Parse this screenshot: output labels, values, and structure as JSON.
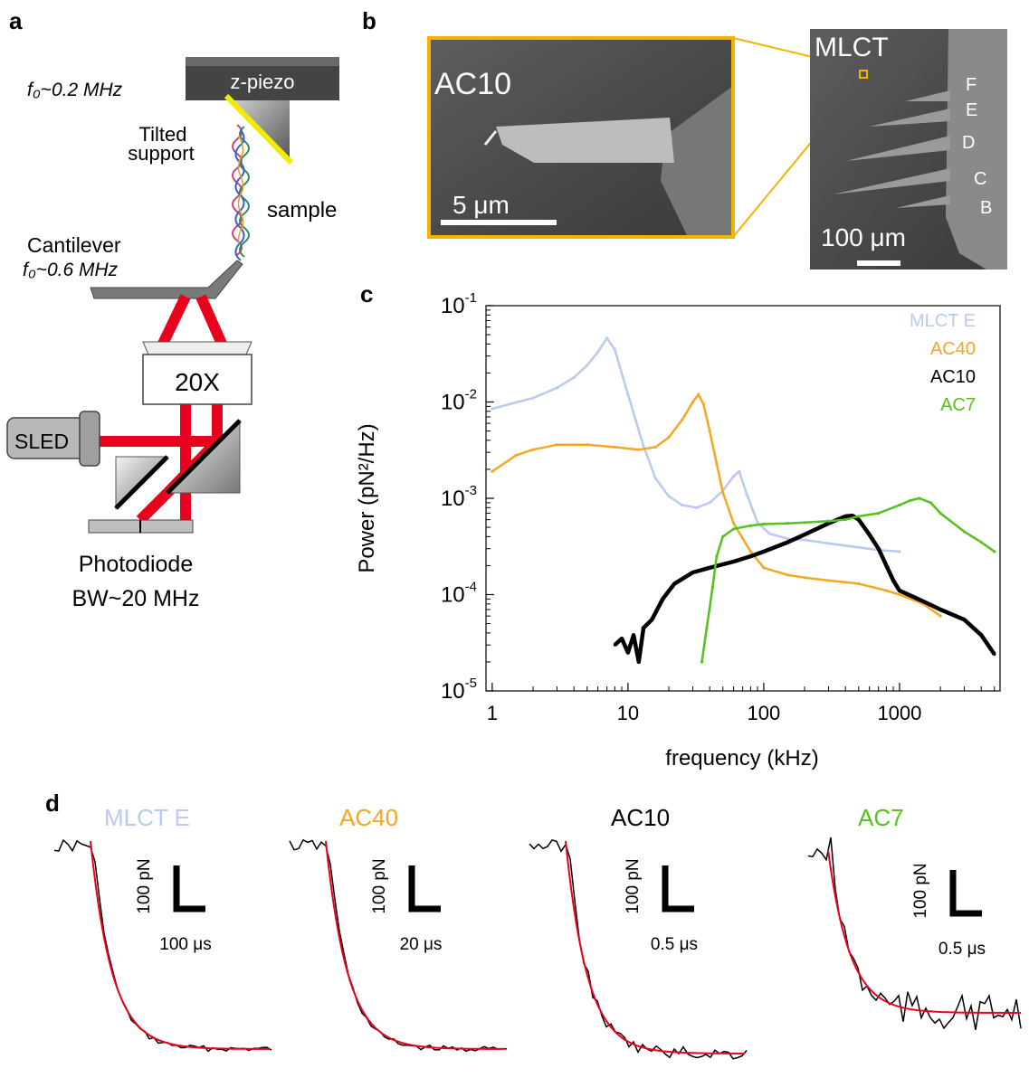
{
  "figure": {
    "panel_labels": {
      "a": "a",
      "b": "b",
      "c": "c",
      "d": "d"
    },
    "panel_a": {
      "z_piezo_label": "z-piezo",
      "f0_top": "f₀~0.2 MHz",
      "tilted_support": [
        "Tilted",
        "support"
      ],
      "sample_label": "sample",
      "cantilever_label": "Cantilever",
      "f0_cantilever": "f₀~0.6 MHz",
      "objective_label": "20X",
      "sled_label": "SLED",
      "photodiode_label": "Photodiode",
      "bandwidth_label": "BW~20 MHz",
      "colors": {
        "laser": "#e8001c",
        "support_edge": "#f2ea00",
        "piezo": "#4a4a4a"
      }
    },
    "panel_b": {
      "inset_label": "AC10",
      "inset_scale": "5 μm",
      "overview_label": "MLCT",
      "overview_scale": "100 μm",
      "cantilever_letters": [
        "F",
        "E",
        "D",
        "C",
        "B"
      ],
      "colors": {
        "frame": "#f1b400"
      }
    },
    "panel_d": {
      "traces": [
        {
          "name": "MLCT E",
          "color": "#b9c9f0",
          "scale_y": "100 pN",
          "scale_x": "100 μs"
        },
        {
          "name": "AC40",
          "color": "#f5a623",
          "scale_y": "100 pN",
          "scale_x": "20 μs"
        },
        {
          "name": "AC10",
          "color": "#000000",
          "scale_y": "100 pN",
          "scale_x": "0.5 μs"
        },
        {
          "name": "AC7",
          "color": "#55c21b",
          "scale_y": "100 pN",
          "scale_x": "0.5 μs"
        }
      ]
    }
  },
  "chart_data": {
    "type": "scatter",
    "xlabel": "frequency (kHz)",
    "ylabel": "Power (pN²/Hz)",
    "xscale": "log",
    "yscale": "log",
    "xlim": [
      0.9,
      5500
    ],
    "ylim": [
      1e-05,
      0.1
    ],
    "x_ticks": [
      1,
      10,
      100,
      1000
    ],
    "x_tick_labels": [
      "1",
      "10",
      "100",
      "1000"
    ],
    "y_ticks": [
      0.1,
      0.01,
      0.001,
      0.0001,
      1e-05
    ],
    "y_tick_labels": [
      {
        "base": "10",
        "exp": "-1"
      },
      {
        "base": "10",
        "exp": "-2"
      },
      {
        "base": "10",
        "exp": "-3"
      },
      {
        "base": "10",
        "exp": "-4"
      },
      {
        "base": "10",
        "exp": "-5"
      }
    ],
    "grid": false,
    "legend_position": "top-right",
    "series": [
      {
        "name": "MLCT E",
        "color": "#b9c9f0",
        "x": [
          1,
          2,
          3,
          4,
          5,
          6,
          7,
          8,
          10,
          13,
          16,
          20,
          25,
          32,
          40,
          50,
          60,
          66,
          75,
          90,
          110,
          150,
          200,
          300,
          500,
          700,
          1000
        ],
        "y": [
          0.0085,
          0.011,
          0.014,
          0.018,
          0.024,
          0.033,
          0.046,
          0.035,
          0.012,
          0.0035,
          0.0016,
          0.00105,
          0.00085,
          0.0008,
          0.0009,
          0.0012,
          0.0017,
          0.0019,
          0.0011,
          0.00056,
          0.00043,
          0.00038,
          0.00037,
          0.00034,
          0.00031,
          0.00029,
          0.00028
        ]
      },
      {
        "name": "AC40",
        "color": "#f5a623",
        "x": [
          1,
          1.5,
          2,
          3,
          5,
          8,
          12,
          16,
          20,
          25,
          30,
          33,
          36,
          40,
          45,
          50,
          60,
          80,
          100,
          150,
          200,
          300,
          500,
          800,
          1000,
          1500,
          2000
        ],
        "y": [
          0.0019,
          0.0028,
          0.0032,
          0.0036,
          0.0036,
          0.0034,
          0.0032,
          0.0034,
          0.0043,
          0.0065,
          0.01,
          0.012,
          0.0095,
          0.005,
          0.0023,
          0.00115,
          0.00055,
          0.00028,
          0.00019,
          0.00016,
          0.00015,
          0.00014,
          0.00013,
          0.00011,
          0.0001,
          8e-05,
          6e-05
        ]
      },
      {
        "name": "AC10",
        "color": "#000000",
        "x": [
          8,
          9,
          10,
          11,
          12,
          13,
          15,
          18,
          22,
          30,
          40,
          60,
          80,
          100,
          150,
          200,
          300,
          400,
          450,
          500,
          600,
          700,
          800,
          900,
          1000,
          1500,
          2000,
          3000,
          4000,
          5000
        ],
        "y": [
          3e-05,
          3.5e-05,
          2.5e-05,
          3.8e-05,
          2e-05,
          4.5e-05,
          5.5e-05,
          9e-05,
          0.00013,
          0.00017,
          0.00019,
          0.00022,
          0.00025,
          0.00028,
          0.00035,
          0.00042,
          0.00055,
          0.00065,
          0.00066,
          0.0006,
          0.00042,
          0.0003,
          0.0002,
          0.00014,
          0.00011,
          8.5e-05,
          7e-05,
          5.5e-05,
          3.8e-05,
          2.4e-05
        ]
      },
      {
        "name": "AC7",
        "color": "#55c21b",
        "x": [
          35,
          38,
          42,
          45,
          50,
          60,
          80,
          100,
          150,
          200,
          300,
          400,
          500,
          700,
          1000,
          1200,
          1400,
          1700,
          2000,
          3000,
          4000,
          5000
        ],
        "y": [
          2e-05,
          4.5e-05,
          0.00012,
          0.00025,
          0.0004,
          0.00048,
          0.00052,
          0.00054,
          0.00055,
          0.00056,
          0.00058,
          0.0006,
          0.00065,
          0.0007,
          0.00085,
          0.00095,
          0.001,
          0.0009,
          0.0007,
          0.00045,
          0.00035,
          0.00028
        ]
      }
    ]
  }
}
